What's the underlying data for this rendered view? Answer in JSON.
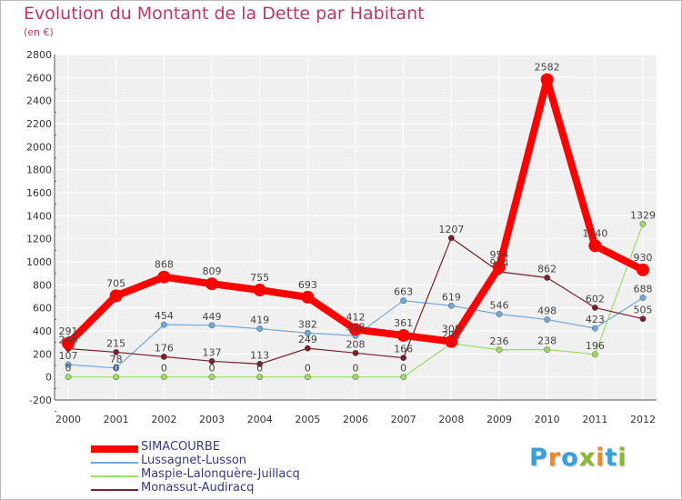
{
  "header": {
    "title": "Evolution du Montant de la Dette par Habitant",
    "subtitle": "(en €)"
  },
  "logo": {
    "text": "Proxiti",
    "colors": [
      "#3aa0d8",
      "#f08a1c",
      "#3aa0d8",
      "#8ab832",
      "#f08a1c",
      "#3aa0d8",
      "#8ab832"
    ]
  },
  "chart_data": {
    "type": "line",
    "title": "Evolution du Montant de la Dette par Habitant",
    "subtitle": "(en €)",
    "xlabel": "",
    "ylabel": "",
    "x": [
      "2000",
      "2001",
      "2002",
      "2003",
      "2004",
      "2005",
      "2006",
      "2007",
      "2008",
      "2009",
      "2010",
      "2011",
      "2012"
    ],
    "ylim": [
      -200,
      2800
    ],
    "yticks": [
      -200,
      0,
      200,
      400,
      600,
      800,
      1000,
      1200,
      1400,
      1600,
      1800,
      2000,
      2200,
      2400,
      2600,
      2800
    ],
    "grid": true,
    "legend": "bottom-left",
    "series": [
      {
        "name": "SIMACOURBE",
        "color": "#ff0000",
        "emphasis": true,
        "values": [
          291,
          705,
          868,
          809,
          755,
          693,
          412,
          361,
          308,
          954,
          2582,
          1140,
          930
        ],
        "labels": [
          "291",
          "705",
          "868",
          "809",
          "755",
          "693",
          "412",
          "361",
          "308",
          "954",
          "2582",
          "1140",
          "930"
        ]
      },
      {
        "name": "Lussagnet-Lusson",
        "color": "#6fa8dc",
        "values": [
          107,
          78,
          454,
          449,
          419,
          382,
          358,
          663,
          619,
          546,
          498,
          423,
          688
        ],
        "labels": [
          "107",
          "78",
          "454",
          "449",
          "419",
          "382",
          "358",
          "663",
          "619",
          "546",
          "498",
          "423",
          "688"
        ]
      },
      {
        "name": "Maspie-Lalonquère-Juillacq",
        "color": "#99dd66",
        "values": [
          0,
          0,
          0,
          0,
          0,
          0,
          0,
          0,
          291,
          236,
          238,
          196,
          1329
        ],
        "labels": [
          "0",
          "0",
          "0",
          "0",
          "0",
          "0",
          "0",
          "0",
          "291",
          "236",
          "238",
          "196",
          "1329"
        ]
      },
      {
        "name": "Monassut-Audiracq",
        "color": "#7a1f2b",
        "values": [
          246,
          215,
          176,
          137,
          113,
          249,
          208,
          166,
          1207,
          914,
          862,
          602,
          505
        ],
        "labels": [
          "246",
          "215",
          "176",
          "137",
          "113",
          "249",
          "208",
          "166",
          "1207",
          "914",
          "862",
          "602",
          "505"
        ]
      }
    ]
  }
}
